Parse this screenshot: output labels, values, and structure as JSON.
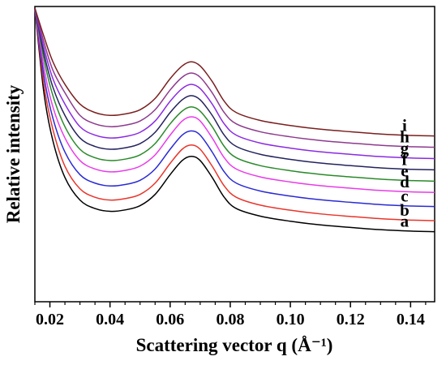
{
  "chart_data": {
    "type": "line",
    "xlabel": "Scattering vector q (Å⁻¹)",
    "ylabel": "Relative intensity",
    "xlim": [
      0.015,
      0.148
    ],
    "ylim": [
      0,
      100
    ],
    "x_ticks": [
      0.02,
      0.04,
      0.06,
      0.08,
      0.1,
      0.12,
      0.14
    ],
    "x_tick_labels": [
      "0.02",
      "0.04",
      "0.06",
      "0.08",
      "0.10",
      "0.12",
      "0.14"
    ],
    "y_ticks_shown": false,
    "grid": false,
    "legend": "none",
    "series": [
      {
        "name": "a",
        "color": "#000000",
        "x": [
          0.015,
          0.018,
          0.021,
          0.025,
          0.03,
          0.035,
          0.04,
          0.045,
          0.05,
          0.055,
          0.06,
          0.064,
          0.067,
          0.07,
          0.074,
          0.078,
          0.082,
          0.09,
          0.1,
          0.11,
          0.12,
          0.13,
          0.14,
          0.148
        ],
        "y": [
          100,
          70,
          53,
          40,
          32,
          29,
          28,
          28.5,
          30,
          34,
          41,
          46,
          47.5,
          46,
          40,
          33,
          29,
          26.3,
          24.5,
          23.2,
          22.3,
          21.5,
          21,
          20.8
        ]
      },
      {
        "name": "b",
        "color": "#e8352b",
        "x": [
          0.015,
          0.018,
          0.021,
          0.025,
          0.03,
          0.035,
          0.04,
          0.045,
          0.05,
          0.055,
          0.06,
          0.064,
          0.067,
          0.07,
          0.074,
          0.078,
          0.082,
          0.09,
          0.1,
          0.11,
          0.12,
          0.13,
          0.14,
          0.148
        ],
        "y": [
          100,
          73,
          57,
          44,
          36,
          33,
          32,
          32.5,
          34,
          38,
          45,
          50,
          51.5,
          50,
          44,
          37,
          33,
          30.2,
          28.4,
          27.1,
          26.2,
          25.4,
          24.9,
          24.7
        ]
      },
      {
        "name": "c",
        "color": "#2a2ad4",
        "x": [
          0.015,
          0.018,
          0.021,
          0.025,
          0.03,
          0.035,
          0.04,
          0.045,
          0.05,
          0.055,
          0.06,
          0.064,
          0.067,
          0.07,
          0.074,
          0.078,
          0.082,
          0.09,
          0.1,
          0.11,
          0.12,
          0.13,
          0.14,
          0.148
        ],
        "y": [
          100,
          76,
          61,
          49,
          41,
          38,
          37,
          37.5,
          39,
          43,
          50,
          55,
          56.5,
          55,
          49,
          42,
          38,
          35.2,
          33.4,
          32.1,
          31.2,
          30.4,
          29.9,
          29.7
        ]
      },
      {
        "name": "d",
        "color": "#e83ce8",
        "x": [
          0.015,
          0.018,
          0.021,
          0.025,
          0.03,
          0.035,
          0.04,
          0.045,
          0.05,
          0.055,
          0.06,
          0.064,
          0.067,
          0.07,
          0.074,
          0.078,
          0.082,
          0.09,
          0.1,
          0.11,
          0.12,
          0.13,
          0.14,
          0.148
        ],
        "y": [
          100,
          79,
          65,
          54,
          46,
          43,
          42,
          42.5,
          44,
          48,
          55,
          60,
          61.5,
          60,
          54,
          47,
          43,
          40.2,
          38.4,
          37.1,
          36.2,
          35.4,
          34.9,
          34.7
        ]
      },
      {
        "name": "e",
        "color": "#2a8a2a",
        "x": [
          0.015,
          0.018,
          0.021,
          0.025,
          0.03,
          0.035,
          0.04,
          0.045,
          0.05,
          0.055,
          0.06,
          0.064,
          0.067,
          0.07,
          0.074,
          0.078,
          0.082,
          0.09,
          0.1,
          0.11,
          0.12,
          0.13,
          0.14,
          0.148
        ],
        "y": [
          100,
          82,
          69,
          58,
          50,
          47,
          46,
          46.5,
          48,
          52,
          59,
          63.5,
          65,
          63.5,
          58,
          51,
          47,
          44.2,
          42.4,
          41.1,
          40.2,
          39.4,
          38.9,
          38.7
        ]
      },
      {
        "name": "f",
        "color": "#23235e",
        "x": [
          0.015,
          0.018,
          0.021,
          0.025,
          0.03,
          0.035,
          0.04,
          0.045,
          0.05,
          0.055,
          0.06,
          0.064,
          0.067,
          0.07,
          0.074,
          0.078,
          0.082,
          0.09,
          0.1,
          0.11,
          0.12,
          0.13,
          0.14,
          0.148
        ],
        "y": [
          100,
          84,
          72,
          62,
          54,
          51,
          50,
          50.5,
          52,
          56,
          63,
          67.5,
          69,
          67.5,
          62,
          55,
          51,
          48.2,
          46.4,
          45.1,
          44.2,
          43.4,
          42.9,
          42.7
        ]
      },
      {
        "name": "g",
        "color": "#8a2be2",
        "x": [
          0.015,
          0.018,
          0.021,
          0.025,
          0.03,
          0.035,
          0.04,
          0.045,
          0.05,
          0.055,
          0.06,
          0.064,
          0.067,
          0.07,
          0.074,
          0.078,
          0.082,
          0.09,
          0.1,
          0.11,
          0.12,
          0.13,
          0.14,
          0.148
        ],
        "y": [
          100,
          86,
          75,
          66,
          58,
          55,
          54,
          54.5,
          56,
          60,
          67,
          71.5,
          73,
          71.5,
          66,
          59,
          55,
          52.2,
          50.4,
          49.1,
          48.2,
          47.4,
          46.9,
          46.7
        ]
      },
      {
        "name": "h",
        "color": "#8e3a8e",
        "x": [
          0.015,
          0.018,
          0.021,
          0.025,
          0.03,
          0.035,
          0.04,
          0.045,
          0.05,
          0.055,
          0.06,
          0.064,
          0.067,
          0.07,
          0.074,
          0.078,
          0.082,
          0.09,
          0.1,
          0.11,
          0.12,
          0.13,
          0.14,
          0.148
        ],
        "y": [
          100,
          88,
          78,
          70,
          62,
          59,
          58,
          58.5,
          60,
          64,
          71,
          75.5,
          77,
          75.5,
          70,
          63,
          59,
          56.2,
          54.4,
          53.1,
          52.2,
          51.4,
          50.9,
          50.7
        ]
      },
      {
        "name": "i",
        "color": "#7a1f1f",
        "x": [
          0.015,
          0.018,
          0.021,
          0.025,
          0.03,
          0.035,
          0.04,
          0.045,
          0.05,
          0.055,
          0.06,
          0.064,
          0.067,
          0.07,
          0.074,
          0.078,
          0.082,
          0.09,
          0.1,
          0.11,
          0.12,
          0.13,
          0.14,
          0.148
        ],
        "y": [
          100,
          90,
          81,
          73,
          66,
          63,
          62,
          62.5,
          64,
          68,
          75,
          79.5,
          81,
          79.5,
          74,
          67,
          63,
          60.2,
          58.4,
          57.1,
          56.2,
          55.4,
          54.9,
          54.7
        ]
      }
    ]
  }
}
